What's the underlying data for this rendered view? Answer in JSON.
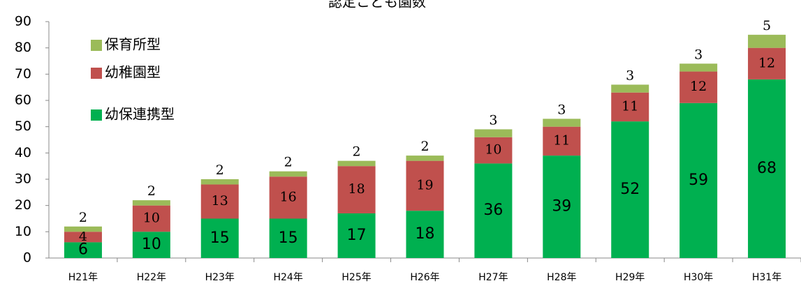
{
  "chart_data": {
    "type": "stacked_bar",
    "title": "認定こども園数",
    "categories": [
      "H21年",
      "H22年",
      "H23年",
      "H24年",
      "H25年",
      "H26年",
      "H27年",
      "H28年",
      "H29年",
      "H30年",
      "H31年"
    ],
    "series": [
      {
        "name": "幼保連携型",
        "color": "#00b050",
        "values": [
          6,
          10,
          15,
          15,
          17,
          18,
          36,
          39,
          52,
          59,
          68
        ]
      },
      {
        "name": "幼稚園型",
        "color": "#c0504d",
        "values": [
          4,
          10,
          13,
          16,
          18,
          19,
          10,
          11,
          11,
          12,
          12
        ]
      },
      {
        "name": "保育所型",
        "color": "#9bbb59",
        "values": [
          2,
          2,
          2,
          2,
          2,
          2,
          3,
          3,
          3,
          3,
          5
        ]
      }
    ],
    "ylim": [
      0,
      90
    ],
    "yticks": [
      0,
      10,
      20,
      30,
      40,
      50,
      60,
      70,
      80,
      90
    ],
    "legend": "upper left"
  }
}
